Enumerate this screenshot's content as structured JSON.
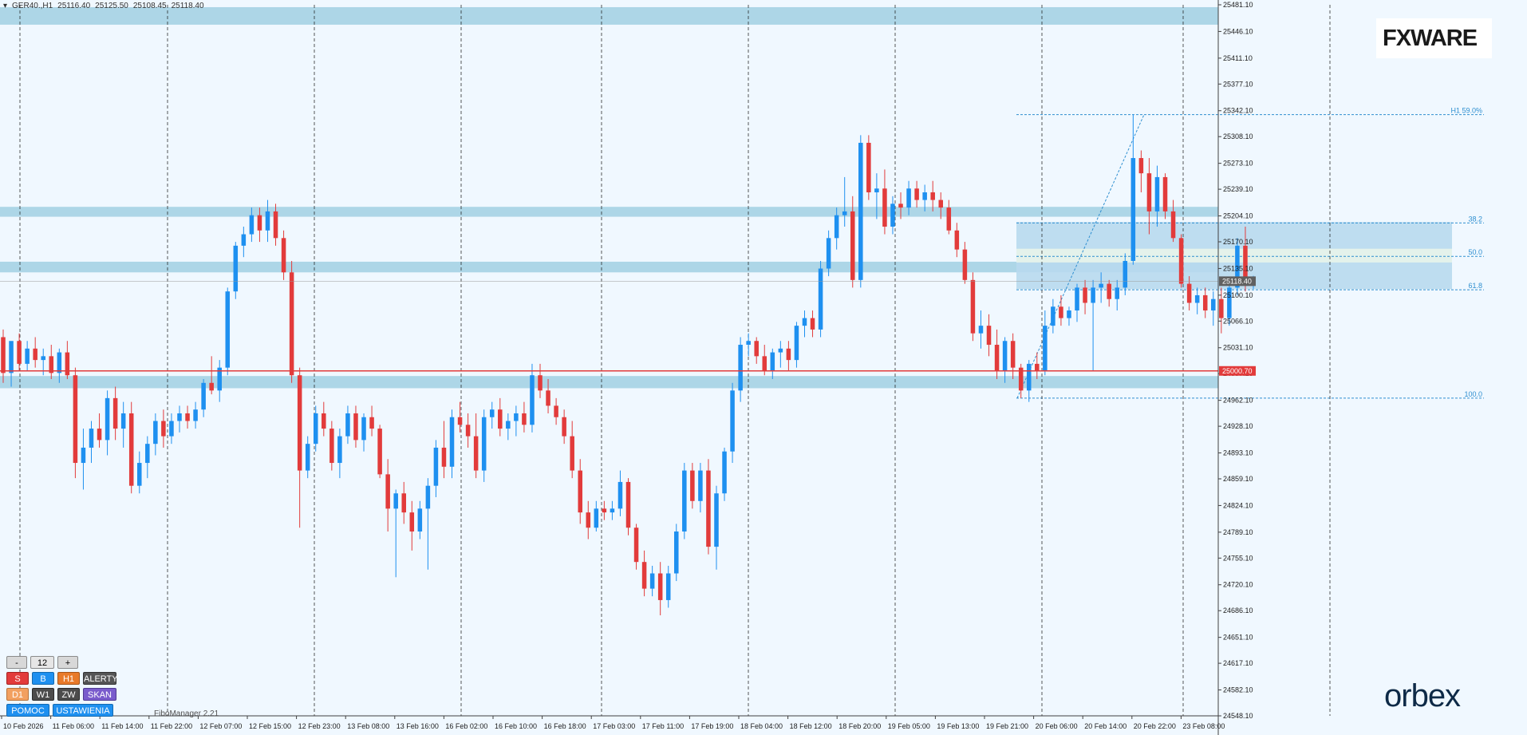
{
  "symbol": {
    "name": "GER40.,H1",
    "open": "25116.40",
    "high": "25125.50",
    "low": "25108.45",
    "close": "25118.40"
  },
  "logo_top": "FXWARE",
  "logo_bottom": "orbex",
  "indicator_name": "FiboManager 2.21",
  "panel": {
    "row1": [
      "-",
      "12",
      "+"
    ],
    "row2": [
      "S",
      "B",
      "H1",
      "ALERTY"
    ],
    "row3": [
      "D1",
      "W1",
      "ZW",
      "SKAN"
    ],
    "row4": [
      "POMOC",
      "USTAWIENIA"
    ]
  },
  "colors": {
    "background": "#f0f8ff",
    "bull": "#1e90f0",
    "bear": "#e23b3b",
    "zone": "#a9d4e6",
    "fibo_zone": "#b8d9ee",
    "level_red": "#e23b3b"
  },
  "chart_data": {
    "type": "candlestick",
    "price_axis": {
      "min": 24548.1,
      "max": 25481.1,
      "ticks": [
        "25481.10",
        "25446.10",
        "25411.10",
        "25377.10",
        "25342.10",
        "25308.10",
        "25273.10",
        "25239.10",
        "25204.10",
        "25170.10",
        "25135.10",
        "25100.10",
        "25066.10",
        "25031.10",
        "24997.10",
        "24962.10",
        "24928.10",
        "24893.10",
        "24859.10",
        "24824.10",
        "24789.10",
        "24755.10",
        "24720.10",
        "24686.10",
        "24651.10",
        "24617.10",
        "24582.10",
        "24548.10"
      ]
    },
    "time_labels": [
      "10 Feb 2026",
      "11 Feb 06:00",
      "11 Feb 14:00",
      "11 Feb 22:00",
      "12 Feb 07:00",
      "12 Feb 15:00",
      "12 Feb 23:00",
      "13 Feb 08:00",
      "13 Feb 16:00",
      "16 Feb 02:00",
      "16 Feb 10:00",
      "16 Feb 18:00",
      "17 Feb 03:00",
      "17 Feb 11:00",
      "17 Feb 19:00",
      "18 Feb 04:00",
      "18 Feb 12:00",
      "18 Feb 20:00",
      "19 Feb 05:00",
      "19 Feb 13:00",
      "19 Feb 21:00",
      "20 Feb 06:00",
      "20 Feb 14:00",
      "20 Feb 22:00",
      "23 Feb 08:00"
    ],
    "current_price": "25118.40",
    "red_level": "25000.70",
    "fibo": {
      "labels": [
        "H1 59.0%",
        "38.2",
        "50.0",
        "61.8",
        "100.0"
      ],
      "high": 25337,
      "low": 24965,
      "zone_top": 25196,
      "zone_bottom": 25108
    },
    "zones": [
      {
        "from": 25455,
        "to": 25478
      },
      {
        "from": 25203,
        "to": 25216
      },
      {
        "from": 25130,
        "to": 25144
      },
      {
        "from": 24978,
        "to": 24994
      }
    ],
    "candles": [
      [
        25045,
        25055,
        24985,
        24998
      ],
      [
        24998,
        25035,
        24980,
        25040
      ],
      [
        25040,
        25050,
        25000,
        25010
      ],
      [
        25010,
        25040,
        25000,
        25030
      ],
      [
        25030,
        25045,
        25005,
        25015
      ],
      [
        25015,
        25030,
        24995,
        25020
      ],
      [
        25020,
        25035,
        24990,
        24998
      ],
      [
        24998,
        25030,
        24985,
        25025
      ],
      [
        25025,
        25040,
        24990,
        24995
      ],
      [
        24995,
        25005,
        24860,
        24880
      ],
      [
        24880,
        24925,
        24845,
        24900
      ],
      [
        24900,
        24935,
        24880,
        24925
      ],
      [
        24925,
        24945,
        24900,
        24910
      ],
      [
        24910,
        24975,
        24890,
        24965
      ],
      [
        24965,
        24980,
        24910,
        24925
      ],
      [
        24925,
        24960,
        24900,
        24945
      ],
      [
        24945,
        24960,
        24840,
        24850
      ],
      [
        24850,
        24895,
        24840,
        24880
      ],
      [
        24880,
        24915,
        24860,
        24905
      ],
      [
        24905,
        24945,
        24890,
        24935
      ],
      [
        24935,
        24950,
        24900,
        24915
      ],
      [
        24915,
        24945,
        24905,
        24935
      ],
      [
        24935,
        24955,
        24920,
        24945
      ],
      [
        24945,
        24955,
        24925,
        24935
      ],
      [
        24935,
        24960,
        24925,
        24950
      ],
      [
        24950,
        24990,
        24940,
        24985
      ],
      [
        24985,
        25020,
        24970,
        24975
      ],
      [
        24975,
        25015,
        24960,
        25005
      ],
      [
        25005,
        25110,
        24995,
        25105
      ],
      [
        25105,
        25170,
        25095,
        25165
      ],
      [
        25165,
        25190,
        25150,
        25180
      ],
      [
        25180,
        25215,
        25170,
        25205
      ],
      [
        25205,
        25215,
        25170,
        25185
      ],
      [
        25185,
        25225,
        25170,
        25210
      ],
      [
        25210,
        25220,
        25165,
        25175
      ],
      [
        25175,
        25185,
        25120,
        25130
      ],
      [
        25130,
        25145,
        24985,
        24995
      ],
      [
        24995,
        25005,
        24795,
        24870
      ],
      [
        24870,
        24915,
        24860,
        24905
      ],
      [
        24905,
        24955,
        24895,
        24945
      ],
      [
        24945,
        24960,
        24915,
        24925
      ],
      [
        24925,
        24935,
        24870,
        24880
      ],
      [
        24880,
        24925,
        24860,
        24915
      ],
      [
        24915,
        24955,
        24905,
        24945
      ],
      [
        24945,
        24955,
        24900,
        24910
      ],
      [
        24910,
        24945,
        24895,
        24940
      ],
      [
        24940,
        24955,
        24915,
        24925
      ],
      [
        24925,
        24930,
        24860,
        24865
      ],
      [
        24865,
        24885,
        24790,
        24820
      ],
      [
        24820,
        24845,
        24730,
        24840
      ],
      [
        24840,
        24855,
        24800,
        24815
      ],
      [
        24815,
        24830,
        24765,
        24790
      ],
      [
        24790,
        24830,
        24780,
        24820
      ],
      [
        24820,
        24860,
        24740,
        24850
      ],
      [
        24850,
        24910,
        24835,
        24900
      ],
      [
        24900,
        24935,
        24860,
        24875
      ],
      [
        24875,
        24950,
        24860,
        24940
      ],
      [
        24940,
        24960,
        24920,
        24930
      ],
      [
        24930,
        24945,
        24900,
        24915
      ],
      [
        24915,
        24945,
        24860,
        24870
      ],
      [
        24870,
        24950,
        24855,
        24940
      ],
      [
        24940,
        24960,
        24925,
        24950
      ],
      [
        24950,
        24965,
        24915,
        24925
      ],
      [
        24925,
        24945,
        24910,
        24935
      ],
      [
        24935,
        24955,
        24915,
        24945
      ],
      [
        24945,
        24960,
        24920,
        24930
      ],
      [
        24930,
        25010,
        24920,
        24995
      ],
      [
        24995,
        25010,
        24965,
        24975
      ],
      [
        24975,
        24990,
        24945,
        24955
      ],
      [
        24955,
        24965,
        24930,
        24940
      ],
      [
        24940,
        24950,
        24905,
        24915
      ],
      [
        24915,
        24935,
        24860,
        24870
      ],
      [
        24870,
        24885,
        24800,
        24815
      ],
      [
        24815,
        24830,
        24780,
        24795
      ],
      [
        24795,
        24830,
        24790,
        24820
      ],
      [
        24820,
        24830,
        24805,
        24815
      ],
      [
        24815,
        24830,
        24805,
        24820
      ],
      [
        24820,
        24870,
        24810,
        24855
      ],
      [
        24855,
        24860,
        24785,
        24795
      ],
      [
        24795,
        24800,
        24740,
        24750
      ],
      [
        24750,
        24765,
        24705,
        24715
      ],
      [
        24715,
        24745,
        24705,
        24735
      ],
      [
        24735,
        24750,
        24680,
        24700
      ],
      [
        24700,
        24745,
        24690,
        24735
      ],
      [
        24735,
        24800,
        24725,
        24790
      ],
      [
        24790,
        24880,
        24780,
        24870
      ],
      [
        24870,
        24880,
        24820,
        24830
      ],
      [
        24830,
        24880,
        24815,
        24870
      ],
      [
        24870,
        24885,
        24760,
        24770
      ],
      [
        24770,
        24850,
        24740,
        24840
      ],
      [
        24840,
        24900,
        24830,
        24895
      ],
      [
        24895,
        24985,
        24880,
        24975
      ],
      [
        24975,
        25045,
        24960,
        25035
      ],
      [
        25035,
        25050,
        25020,
        25040
      ],
      [
        25040,
        25045,
        25010,
        25020
      ],
      [
        25020,
        25035,
        24995,
        25000
      ],
      [
        25000,
        25030,
        24990,
        25025
      ],
      [
        25025,
        25040,
        25005,
        25030
      ],
      [
        25030,
        25040,
        25000,
        25015
      ],
      [
        25015,
        25065,
        25005,
        25060
      ],
      [
        25060,
        25080,
        25045,
        25070
      ],
      [
        25070,
        25080,
        25045,
        25055
      ],
      [
        25055,
        25145,
        25045,
        25135
      ],
      [
        25135,
        25185,
        25125,
        25175
      ],
      [
        25175,
        25215,
        25160,
        25205
      ],
      [
        25205,
        25255,
        25190,
        25210
      ],
      [
        25210,
        25230,
        25110,
        25120
      ],
      [
        25120,
        25310,
        25110,
        25300
      ],
      [
        25300,
        25310,
        25225,
        25235
      ],
      [
        25235,
        25260,
        25200,
        25240
      ],
      [
        25240,
        25265,
        25180,
        25190
      ],
      [
        25190,
        25230,
        25180,
        25220
      ],
      [
        25220,
        25235,
        25200,
        25215
      ],
      [
        25215,
        25250,
        25205,
        25240
      ],
      [
        25240,
        25250,
        25215,
        25225
      ],
      [
        25225,
        25245,
        25210,
        25235
      ],
      [
        25235,
        25250,
        25210,
        25225
      ],
      [
        25225,
        25235,
        25200,
        25215
      ],
      [
        25215,
        25225,
        25180,
        25185
      ],
      [
        25185,
        25195,
        25150,
        25160
      ],
      [
        25160,
        25170,
        25115,
        25120
      ],
      [
        25120,
        25130,
        25040,
        25050
      ],
      [
        25050,
        25080,
        25030,
        25060
      ],
      [
        25060,
        25075,
        25020,
        25035
      ],
      [
        25035,
        25055,
        24990,
        25000
      ],
      [
        25000,
        25045,
        24985,
        25040
      ],
      [
        25040,
        25050,
        24990,
        25005
      ],
      [
        25005,
        25010,
        24965,
        24975
      ],
      [
        24975,
        25015,
        24960,
        25010
      ],
      [
        25010,
        25025,
        24990,
        25000
      ],
      [
        25000,
        25080,
        24995,
        25060
      ],
      [
        25060,
        25095,
        25050,
        25085
      ],
      [
        25085,
        25100,
        25060,
        25070
      ],
      [
        25070,
        25085,
        25060,
        25080
      ],
      [
        25080,
        25115,
        25065,
        25110
      ],
      [
        25110,
        25120,
        25075,
        25090
      ],
      [
        25090,
        25120,
        25000,
        25110
      ],
      [
        25110,
        25130,
        25090,
        25115
      ],
      [
        25115,
        25120,
        25085,
        25095
      ],
      [
        25095,
        25120,
        25080,
        25110
      ],
      [
        25110,
        25155,
        25100,
        25145
      ],
      [
        25145,
        25337,
        25140,
        25280
      ],
      [
        25280,
        25290,
        25235,
        25260
      ],
      [
        25260,
        25280,
        25180,
        25210
      ],
      [
        25210,
        25270,
        25190,
        25255
      ],
      [
        25255,
        25260,
        25200,
        25210
      ],
      [
        25210,
        25225,
        25170,
        25175
      ],
      [
        25175,
        25180,
        25110,
        25115
      ],
      [
        25115,
        25125,
        25080,
        25090
      ],
      [
        25090,
        25110,
        25075,
        25100
      ],
      [
        25100,
        25110,
        25070,
        25080
      ],
      [
        25080,
        25105,
        25060,
        25095
      ],
      [
        25095,
        25110,
        25050,
        25070
      ],
      [
        25070,
        25115,
        25060,
        25110
      ],
      [
        25110,
        25175,
        25100,
        25165
      ],
      [
        25165,
        25190,
        25105,
        25115
      ],
      [
        25116.4,
        25125.5,
        25108.45,
        25118.4
      ]
    ]
  }
}
